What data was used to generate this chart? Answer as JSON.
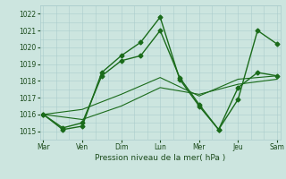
{
  "background_color": "#cce5df",
  "grid_color": "#aacccc",
  "line_color": "#1a6b1a",
  "xlabel": "Pression niveau de la mer( hPa )",
  "ylim": [
    1014.5,
    1022.5
  ],
  "yticks": [
    1015,
    1016,
    1017,
    1018,
    1019,
    1020,
    1021,
    1022
  ],
  "x_day_labels": [
    "Mar",
    "Ven",
    "Dim",
    "Lun",
    "Mer",
    "Jeu",
    "Sam"
  ],
  "x_day_positions": [
    0,
    6,
    12,
    18,
    24,
    30,
    36
  ],
  "x_minor_positions": [
    0,
    2,
    4,
    6,
    8,
    10,
    12,
    14,
    16,
    18,
    20,
    22,
    24,
    26,
    28,
    30,
    32,
    34,
    36
  ],
  "series": [
    {
      "x": [
        0,
        3,
        6,
        9,
        12,
        15,
        18,
        21,
        24,
        27,
        30,
        33,
        36
      ],
      "y": [
        1016.0,
        1015.1,
        1015.3,
        1018.5,
        1019.5,
        1020.3,
        1021.8,
        1018.1,
        1016.5,
        1015.1,
        1016.9,
        1021.0,
        1020.2
      ],
      "marker": "D",
      "markersize": 2.5,
      "linewidth": 1.0
    },
    {
      "x": [
        0,
        3,
        6,
        9,
        12,
        15,
        18,
        21,
        24,
        27,
        30,
        33,
        36
      ],
      "y": [
        1016.0,
        1015.2,
        1015.5,
        1018.3,
        1019.2,
        1019.5,
        1021.0,
        1018.2,
        1016.6,
        1015.1,
        1017.6,
        1018.5,
        1018.3
      ],
      "marker": "D",
      "markersize": 2.5,
      "linewidth": 1.0
    },
    {
      "x": [
        0,
        6,
        12,
        18,
        24,
        30,
        36
      ],
      "y": [
        1016.0,
        1015.7,
        1016.5,
        1017.6,
        1017.2,
        1017.8,
        1018.1
      ],
      "marker": null,
      "markersize": 0,
      "linewidth": 0.8
    },
    {
      "x": [
        0,
        6,
        12,
        18,
        24,
        30,
        36
      ],
      "y": [
        1016.0,
        1016.3,
        1017.2,
        1018.2,
        1017.1,
        1018.1,
        1018.3
      ],
      "marker": null,
      "markersize": 0,
      "linewidth": 0.8
    }
  ]
}
